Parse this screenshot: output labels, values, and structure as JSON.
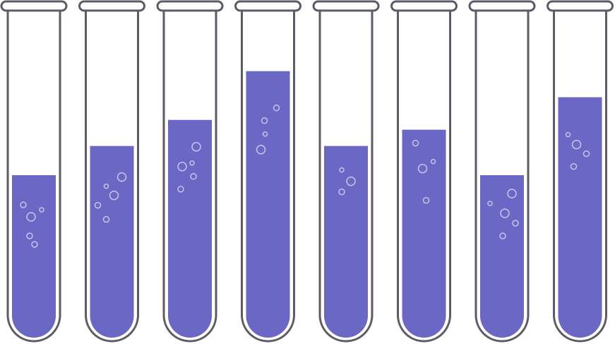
{
  "colors": {
    "liquid": "#6b67c4",
    "glass_outline": "#5f5b66",
    "bubble": "#c9c3ee",
    "background": "#ffffff"
  },
  "tubes": [
    {
      "name": "tube-1",
      "fill_fraction": 0.5
    },
    {
      "name": "tube-2",
      "fill_fraction": 0.59
    },
    {
      "name": "tube-3",
      "fill_fraction": 0.67
    },
    {
      "name": "tube-4",
      "fill_fraction": 0.82
    },
    {
      "name": "tube-5",
      "fill_fraction": 0.59
    },
    {
      "name": "tube-6",
      "fill_fraction": 0.64
    },
    {
      "name": "tube-7",
      "fill_fraction": 0.5
    },
    {
      "name": "tube-8",
      "fill_fraction": 0.74
    }
  ]
}
